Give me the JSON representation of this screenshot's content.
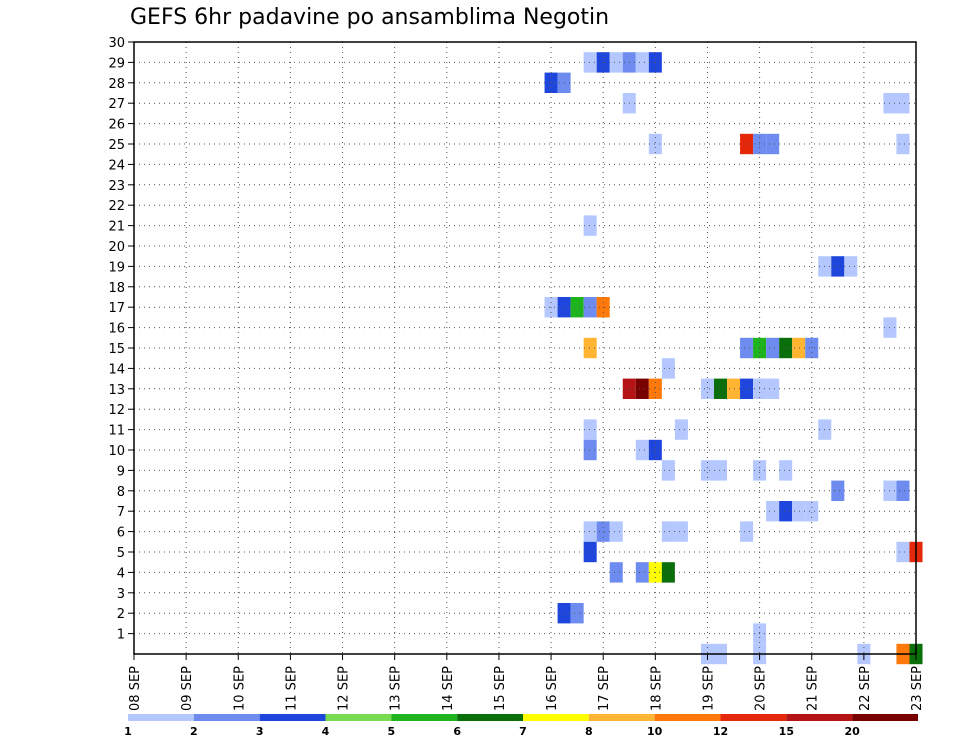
{
  "chart_data": {
    "type": "heatmap",
    "title": "GEFS 6hr padavine po ansamblima Negotin",
    "y_tick_labels": [
      "1",
      "2",
      "3",
      "4",
      "5",
      "6",
      "7",
      "8",
      "9",
      "10",
      "11",
      "12",
      "13",
      "14",
      "15",
      "16",
      "17",
      "18",
      "19",
      "20",
      "21",
      "22",
      "23",
      "24",
      "25",
      "26",
      "27",
      "28",
      "29",
      "30"
    ],
    "x_tick_labels": [
      "08 SEP",
      "09 SEP",
      "10 SEP",
      "11 SEP",
      "12 SEP",
      "13 SEP",
      "14 SEP",
      "15 SEP",
      "16 SEP",
      "17 SEP",
      "18 SEP",
      "19 SEP",
      "20 SEP",
      "21 SEP",
      "22 SEP",
      "23 SEP"
    ],
    "grid": true,
    "legend_position": "bottom",
    "legend": {
      "labels": [
        "1",
        "2",
        "3",
        "4",
        "5",
        "6",
        "7",
        "8",
        "10",
        "12",
        "15",
        "20"
      ],
      "colors": [
        "#b4c8ff",
        "#6e8cf0",
        "#1e46dc",
        "#78dc50",
        "#1eb41e",
        "#0a6e0a",
        "#ffff00",
        "#ffb432",
        "#ff780a",
        "#e6280a",
        "#b41414",
        "#780000"
      ]
    },
    "cells": [
      {
        "t": 8.0,
        "m": 28,
        "c": 3
      },
      {
        "t": 8.25,
        "m": 28,
        "c": 2
      },
      {
        "t": 8.0,
        "m": 17,
        "c": 1
      },
      {
        "t": 8.25,
        "m": 17,
        "c": 3
      },
      {
        "t": 8.5,
        "m": 17,
        "c": 5
      },
      {
        "t": 8.75,
        "m": 17,
        "c": 2
      },
      {
        "t": 9.0,
        "m": 17,
        "c": 9
      },
      {
        "t": 8.25,
        "m": 2,
        "c": 3
      },
      {
        "t": 8.5,
        "m": 2,
        "c": 2
      },
      {
        "t": 8.75,
        "m": 29,
        "c": 1
      },
      {
        "t": 9.0,
        "m": 29,
        "c": 3
      },
      {
        "t": 9.25,
        "m": 29,
        "c": 1
      },
      {
        "t": 9.5,
        "m": 29,
        "c": 2
      },
      {
        "t": 9.75,
        "m": 29,
        "c": 1
      },
      {
        "t": 10.0,
        "m": 29,
        "c": 3
      },
      {
        "t": 8.75,
        "m": 21,
        "c": 1
      },
      {
        "t": 8.75,
        "m": 15,
        "c": 8
      },
      {
        "t": 8.75,
        "m": 11,
        "c": 1
      },
      {
        "t": 8.75,
        "m": 10,
        "c": 2
      },
      {
        "t": 8.75,
        "m": 6,
        "c": 1
      },
      {
        "t": 9.0,
        "m": 6,
        "c": 2
      },
      {
        "t": 9.25,
        "m": 6,
        "c": 1
      },
      {
        "t": 8.75,
        "m": 5,
        "c": 3
      },
      {
        "t": 9.25,
        "m": 4,
        "c": 2
      },
      {
        "t": 9.75,
        "m": 4,
        "c": 2
      },
      {
        "t": 10.0,
        "m": 4,
        "c": 7
      },
      {
        "t": 10.25,
        "m": 4,
        "c": 6
      },
      {
        "t": 9.5,
        "m": 27,
        "c": 1
      },
      {
        "t": 10.0,
        "m": 25,
        "c": 1
      },
      {
        "t": 9.5,
        "m": 13,
        "c": 11
      },
      {
        "t": 9.75,
        "m": 13,
        "c": 12
      },
      {
        "t": 10.0,
        "m": 13,
        "c": 9
      },
      {
        "t": 9.75,
        "m": 10,
        "c": 1
      },
      {
        "t": 10.0,
        "m": 10,
        "c": 3
      },
      {
        "t": 10.25,
        "m": 14,
        "c": 1
      },
      {
        "t": 10.5,
        "m": 11,
        "c": 1
      },
      {
        "t": 10.25,
        "m": 9,
        "c": 1
      },
      {
        "t": 10.25,
        "m": 6,
        "c": 1
      },
      {
        "t": 10.5,
        "m": 6,
        "c": 1
      },
      {
        "t": 11.0,
        "m": 13,
        "c": 1
      },
      {
        "t": 11.25,
        "m": 13,
        "c": 6
      },
      {
        "t": 11.5,
        "m": 13,
        "c": 8
      },
      {
        "t": 11.75,
        "m": 13,
        "c": 3
      },
      {
        "t": 12.0,
        "m": 13,
        "c": 1
      },
      {
        "t": 12.25,
        "m": 13,
        "c": 1
      },
      {
        "t": 11.0,
        "m": 9,
        "c": 1
      },
      {
        "t": 11.25,
        "m": 9,
        "c": 1
      },
      {
        "t": 11.0,
        "m": 0,
        "c": 1
      },
      {
        "t": 11.25,
        "m": 0,
        "c": 1
      },
      {
        "t": 11.75,
        "m": 25,
        "c": 10
      },
      {
        "t": 12.0,
        "m": 25,
        "c": 2
      },
      {
        "t": 12.25,
        "m": 25,
        "c": 2
      },
      {
        "t": 11.75,
        "m": 15,
        "c": 2
      },
      {
        "t": 12.0,
        "m": 15,
        "c": 5
      },
      {
        "t": 12.25,
        "m": 15,
        "c": 2
      },
      {
        "t": 12.5,
        "m": 15,
        "c": 6
      },
      {
        "t": 12.75,
        "m": 15,
        "c": 8
      },
      {
        "t": 13.0,
        "m": 15,
        "c": 2
      },
      {
        "t": 12.0,
        "m": 9,
        "c": 1
      },
      {
        "t": 12.0,
        "m": 1,
        "c": 1
      },
      {
        "t": 12.0,
        "m": 0,
        "c": 1
      },
      {
        "t": 12.5,
        "m": 9,
        "c": 1
      },
      {
        "t": 11.75,
        "m": 6,
        "c": 1
      },
      {
        "t": 12.25,
        "m": 7,
        "c": 1
      },
      {
        "t": 12.5,
        "m": 7,
        "c": 3
      },
      {
        "t": 12.75,
        "m": 7,
        "c": 1
      },
      {
        "t": 13.0,
        "m": 7,
        "c": 1
      },
      {
        "t": 13.25,
        "m": 19,
        "c": 1
      },
      {
        "t": 13.5,
        "m": 19,
        "c": 3
      },
      {
        "t": 13.75,
        "m": 19,
        "c": 1
      },
      {
        "t": 13.25,
        "m": 11,
        "c": 1
      },
      {
        "t": 13.5,
        "m": 8,
        "c": 2
      },
      {
        "t": 14.0,
        "m": 0,
        "c": 1
      },
      {
        "t": 14.5,
        "m": 27,
        "c": 1
      },
      {
        "t": 14.75,
        "m": 27,
        "c": 1
      },
      {
        "t": 14.75,
        "m": 25,
        "c": 1
      },
      {
        "t": 14.5,
        "m": 16,
        "c": 1
      },
      {
        "t": 14.5,
        "m": 8,
        "c": 1
      },
      {
        "t": 14.75,
        "m": 8,
        "c": 2
      },
      {
        "t": 14.75,
        "m": 5,
        "c": 1
      },
      {
        "t": 15.0,
        "m": 5,
        "c": 10
      },
      {
        "t": 14.75,
        "m": 0,
        "c": 9
      },
      {
        "t": 15.0,
        "m": 0,
        "c": 6
      }
    ]
  }
}
